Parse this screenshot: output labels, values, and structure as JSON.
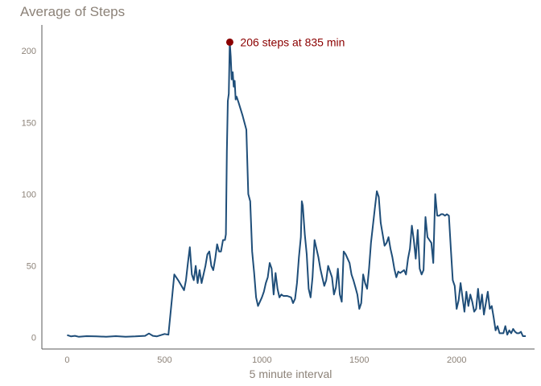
{
  "chart_data": {
    "type": "line",
    "title": "Average of Steps",
    "xlabel": "5 minute interval",
    "ylabel": "",
    "xlim": [
      -130,
      2400
    ],
    "ylim": [
      -8,
      218
    ],
    "xticks": [
      0,
      500,
      1000,
      1500,
      2000
    ],
    "yticks": [
      0,
      50,
      100,
      150,
      200
    ],
    "grid": false,
    "line_color": "#1f4e79",
    "highlight_color": "#8b0000",
    "text_color": "#8c8278",
    "series": [
      {
        "points": [
          [
            0,
            1.7
          ],
          [
            20,
            0.8
          ],
          [
            40,
            1.2
          ],
          [
            60,
            0.5
          ],
          [
            100,
            1.0
          ],
          [
            150,
            0.8
          ],
          [
            200,
            0.6
          ],
          [
            250,
            1.0
          ],
          [
            300,
            0.6
          ],
          [
            350,
            0.8
          ],
          [
            400,
            1.2
          ],
          [
            420,
            2.8
          ],
          [
            440,
            1.2
          ],
          [
            460,
            0.8
          ],
          [
            500,
            2.5
          ],
          [
            520,
            2.0
          ],
          [
            540,
            30
          ],
          [
            550,
            44
          ],
          [
            570,
            40
          ],
          [
            600,
            33
          ],
          [
            610,
            40
          ],
          [
            620,
            52
          ],
          [
            630,
            63
          ],
          [
            640,
            44
          ],
          [
            650,
            40
          ],
          [
            660,
            50
          ],
          [
            670,
            38
          ],
          [
            680,
            47
          ],
          [
            690,
            38
          ],
          [
            700,
            44
          ],
          [
            710,
            50
          ],
          [
            720,
            58
          ],
          [
            730,
            60
          ],
          [
            740,
            50
          ],
          [
            750,
            47
          ],
          [
            760,
            55
          ],
          [
            770,
            65
          ],
          [
            780,
            60
          ],
          [
            790,
            60
          ],
          [
            800,
            68
          ],
          [
            810,
            68
          ],
          [
            815,
            72
          ],
          [
            820,
            130
          ],
          [
            825,
            165
          ],
          [
            830,
            170
          ],
          [
            835,
            206
          ],
          [
            840,
            196
          ],
          [
            845,
            180
          ],
          [
            850,
            185
          ],
          [
            855,
            175
          ],
          [
            860,
            179
          ],
          [
            865,
            166
          ],
          [
            870,
            168
          ],
          [
            880,
            164
          ],
          [
            900,
            155
          ],
          [
            920,
            145
          ],
          [
            930,
            100
          ],
          [
            940,
            95
          ],
          [
            950,
            60
          ],
          [
            960,
            45
          ],
          [
            970,
            28
          ],
          [
            980,
            22
          ],
          [
            1000,
            28
          ],
          [
            1010,
            32
          ],
          [
            1020,
            38
          ],
          [
            1030,
            42
          ],
          [
            1040,
            52
          ],
          [
            1050,
            48
          ],
          [
            1060,
            30
          ],
          [
            1070,
            45
          ],
          [
            1080,
            34
          ],
          [
            1090,
            28
          ],
          [
            1100,
            30
          ],
          [
            1110,
            29
          ],
          [
            1130,
            29
          ],
          [
            1150,
            28
          ],
          [
            1160,
            24
          ],
          [
            1170,
            27
          ],
          [
            1180,
            38
          ],
          [
            1190,
            56
          ],
          [
            1200,
            70
          ],
          [
            1205,
            95
          ],
          [
            1210,
            92
          ],
          [
            1220,
            72
          ],
          [
            1230,
            58
          ],
          [
            1240,
            34
          ],
          [
            1250,
            28
          ],
          [
            1260,
            42
          ],
          [
            1270,
            68
          ],
          [
            1280,
            62
          ],
          [
            1290,
            56
          ],
          [
            1300,
            48
          ],
          [
            1310,
            42
          ],
          [
            1320,
            36
          ],
          [
            1330,
            40
          ],
          [
            1340,
            50
          ],
          [
            1350,
            46
          ],
          [
            1360,
            42
          ],
          [
            1370,
            30
          ],
          [
            1380,
            35
          ],
          [
            1390,
            48
          ],
          [
            1400,
            30
          ],
          [
            1410,
            25
          ],
          [
            1420,
            60
          ],
          [
            1430,
            58
          ],
          [
            1440,
            55
          ],
          [
            1450,
            52
          ],
          [
            1460,
            44
          ],
          [
            1470,
            40
          ],
          [
            1480,
            35
          ],
          [
            1490,
            30
          ],
          [
            1500,
            20
          ],
          [
            1510,
            24
          ],
          [
            1520,
            44
          ],
          [
            1530,
            38
          ],
          [
            1540,
            34
          ],
          [
            1550,
            48
          ],
          [
            1560,
            66
          ],
          [
            1570,
            78
          ],
          [
            1580,
            90
          ],
          [
            1590,
            102
          ],
          [
            1600,
            98
          ],
          [
            1610,
            80
          ],
          [
            1620,
            72
          ],
          [
            1630,
            64
          ],
          [
            1640,
            66
          ],
          [
            1650,
            70
          ],
          [
            1660,
            62
          ],
          [
            1670,
            56
          ],
          [
            1680,
            48
          ],
          [
            1690,
            42
          ],
          [
            1700,
            46
          ],
          [
            1710,
            45
          ],
          [
            1720,
            46
          ],
          [
            1730,
            47
          ],
          [
            1740,
            44
          ],
          [
            1750,
            55
          ],
          [
            1760,
            62
          ],
          [
            1770,
            78
          ],
          [
            1780,
            68
          ],
          [
            1790,
            55
          ],
          [
            1800,
            75
          ],
          [
            1810,
            48
          ],
          [
            1820,
            44
          ],
          [
            1830,
            47
          ],
          [
            1840,
            84
          ],
          [
            1850,
            70
          ],
          [
            1860,
            68
          ],
          [
            1870,
            66
          ],
          [
            1880,
            52
          ],
          [
            1890,
            100
          ],
          [
            1900,
            85
          ],
          [
            1910,
            85
          ],
          [
            1920,
            86
          ],
          [
            1930,
            86
          ],
          [
            1940,
            85
          ],
          [
            1950,
            86
          ],
          [
            1960,
            85
          ],
          [
            1970,
            62
          ],
          [
            1980,
            40
          ],
          [
            1990,
            36
          ],
          [
            2000,
            20
          ],
          [
            2010,
            26
          ],
          [
            2020,
            38
          ],
          [
            2030,
            28
          ],
          [
            2040,
            18
          ],
          [
            2050,
            32
          ],
          [
            2060,
            22
          ],
          [
            2070,
            30
          ],
          [
            2080,
            25
          ],
          [
            2090,
            18
          ],
          [
            2100,
            20
          ],
          [
            2110,
            34
          ],
          [
            2120,
            20
          ],
          [
            2130,
            30
          ],
          [
            2140,
            16
          ],
          [
            2150,
            24
          ],
          [
            2160,
            32
          ],
          [
            2170,
            20
          ],
          [
            2180,
            22
          ],
          [
            2190,
            14
          ],
          [
            2200,
            5
          ],
          [
            2210,
            8
          ],
          [
            2220,
            3
          ],
          [
            2230,
            3
          ],
          [
            2240,
            3
          ],
          [
            2250,
            8
          ],
          [
            2260,
            2
          ],
          [
            2270,
            5
          ],
          [
            2280,
            3
          ],
          [
            2290,
            6
          ],
          [
            2300,
            4
          ],
          [
            2310,
            3
          ],
          [
            2320,
            3
          ],
          [
            2330,
            4
          ],
          [
            2340,
            1
          ],
          [
            2355,
            1
          ]
        ]
      }
    ],
    "highlight": {
      "x": 835,
      "y": 206,
      "label": "206 steps at 835 min"
    }
  }
}
